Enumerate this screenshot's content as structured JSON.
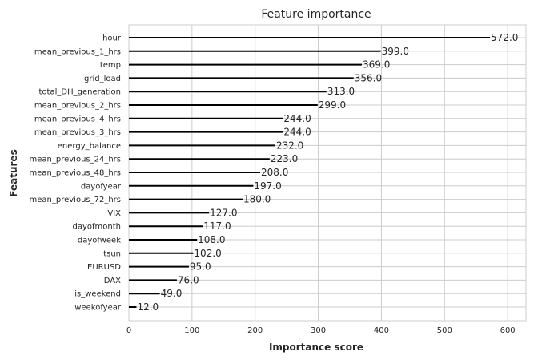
{
  "chart_data": {
    "type": "bar",
    "orientation": "horizontal",
    "title": "Feature importance",
    "xlabel": "Importance score",
    "ylabel": "Features",
    "xlim": [
      0,
      629
    ],
    "xticks": [
      0,
      100,
      200,
      300,
      400,
      500,
      600
    ],
    "grid": true,
    "bar_color": "#000000",
    "categories": [
      "hour",
      "mean_previous_1_hrs",
      "temp",
      "grid_load",
      "total_DH_generation",
      "mean_previous_2_hrs",
      "mean_previous_4_hrs",
      "mean_previous_3_hrs",
      "energy_balance",
      "mean_previous_24_hrs",
      "mean_previous_48_hrs",
      "dayofyear",
      "mean_previous_72_hrs",
      "VIX",
      "dayofmonth",
      "dayofweek",
      "tsun",
      "EURUSD",
      "DAX",
      "is_weekend",
      "weekofyear"
    ],
    "values": [
      572.0,
      399.0,
      369.0,
      356.0,
      313.0,
      299.0,
      244.0,
      244.0,
      232.0,
      223.0,
      208.0,
      197.0,
      180.0,
      127.0,
      117.0,
      108.0,
      102.0,
      95.0,
      76.0,
      49.0,
      12.0
    ],
    "value_labels": [
      "572.0",
      "399.0",
      "369.0",
      "356.0",
      "313.0",
      "299.0",
      "244.0",
      "244.0",
      "232.0",
      "223.0",
      "208.0",
      "197.0",
      "180.0",
      "127.0",
      "117.0",
      "108.0",
      "102.0",
      "95.0",
      "76.0",
      "49.0",
      "12.0"
    ]
  }
}
